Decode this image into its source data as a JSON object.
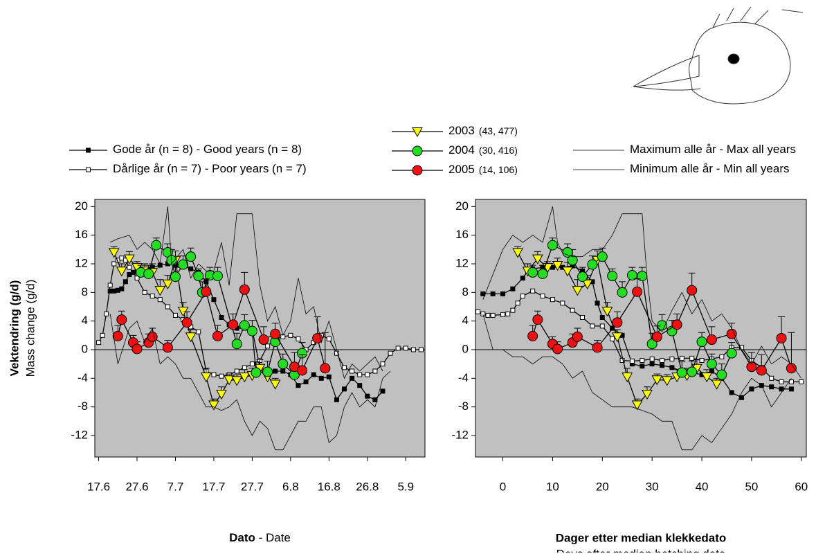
{
  "chart_data": [
    {
      "type": "line",
      "xlabel": {
        "no": "Dato",
        "en": " - Date"
      },
      "ylabel": {
        "no": "Vektendring (g/d)",
        "en": "Mass change (g/d)"
      },
      "xlim": [
        -1,
        85
      ],
      "ylim": [
        -15,
        21
      ],
      "yticks": [
        -12,
        -8,
        -4,
        0,
        4,
        8,
        12,
        16,
        20
      ],
      "xticks": [
        {
          "value": 0,
          "label": "17.6"
        },
        {
          "value": 10,
          "label": "27.6"
        },
        {
          "value": 20,
          "label": "7.7"
        },
        {
          "value": 30,
          "label": "17.7"
        },
        {
          "value": 40,
          "label": "27.7"
        },
        {
          "value": 50,
          "label": "6.8"
        },
        {
          "value": 60,
          "label": "16.8"
        },
        {
          "value": 70,
          "label": "26.8"
        },
        {
          "value": 80,
          "label": "5.9"
        }
      ],
      "series": [
        {
          "name": "Gode år (n = 8) - Good years (n = 8)",
          "color": "#000000",
          "marker": "square",
          "x": [
            3,
            4,
            5,
            6,
            7,
            8,
            9,
            10,
            12,
            14,
            16,
            18,
            20,
            22,
            24,
            26,
            28,
            30,
            32,
            34,
            36,
            38,
            40,
            42,
            44,
            46,
            48,
            50,
            52,
            54,
            56,
            58,
            60,
            62,
            64,
            66,
            68,
            70,
            72,
            74
          ],
          "values": [
            8.2,
            8.2,
            8.3,
            8.5,
            9.5,
            10.5,
            10.8,
            11,
            11.2,
            11.5,
            11.8,
            12,
            11.9,
            11.7,
            11.3,
            10.8,
            9.5,
            7,
            4.5,
            3.5,
            3,
            3,
            2.8,
            -2.5,
            -3,
            -3,
            -3,
            -3.5,
            -5,
            -4.5,
            -3.5,
            -4,
            -3.8,
            -7,
            -5.5,
            -4,
            -5,
            -6.5,
            -7,
            -5.8
          ]
        },
        {
          "name": "Dårlige år (n = 7) - Poor years (n = 7)",
          "color": "#ffffff",
          "marker": "square",
          "x": [
            0,
            1,
            2,
            3,
            4,
            5,
            6,
            7,
            8,
            10,
            12,
            14,
            16,
            18,
            20,
            22,
            24,
            26,
            28,
            30,
            32,
            34,
            36,
            38,
            40,
            42,
            44,
            46,
            48,
            50,
            52,
            54,
            56,
            58,
            60,
            62,
            64,
            66,
            68,
            70,
            72,
            74,
            76,
            78,
            80,
            82,
            84
          ],
          "values": [
            1,
            2,
            5,
            9,
            12,
            12.5,
            12.8,
            12.5,
            11.5,
            10,
            8,
            7.5,
            7,
            6,
            4.8,
            4.2,
            3.2,
            2.5,
            -3,
            -3.5,
            -3.7,
            -3.5,
            -3,
            -2.5,
            -2,
            -1.5,
            0.5,
            1.5,
            1.8,
            2,
            1.5,
            0,
            1,
            2,
            1.5,
            -0.5,
            -2.5,
            -3,
            -3.5,
            -3.5,
            -3,
            -2,
            -0.5,
            0.2,
            0.2,
            0,
            0
          ]
        },
        {
          "name": "2003",
          "sample": "(43, 477)",
          "color": "#ffff00",
          "marker": "triangle",
          "x": [
            4,
            6,
            8,
            10,
            12,
            14,
            16,
            18,
            20,
            22,
            24,
            28,
            30,
            32,
            34,
            36,
            38,
            40,
            42,
            44,
            46
          ],
          "values": [
            13.6,
            11,
            12.7,
            11.5,
            11,
            10.8,
            8.3,
            9.2,
            12.5,
            5.4,
            1.8,
            -3.8,
            -7.7,
            -6.2,
            -4.2,
            -4.3,
            -3.8,
            -3.6,
            -2.6,
            -3.8,
            -4.8
          ],
          "errors": [
            0.8,
            1,
            1,
            0.8,
            1,
            1.2,
            1.5,
            1.2,
            1.3,
            1.2,
            1,
            1.2,
            0.8,
            1,
            0.8,
            0.8,
            1,
            1,
            1.2,
            1,
            0.8
          ]
        },
        {
          "name": "2004",
          "sample": "(30, 416)",
          "color": "#22dd22",
          "marker": "circle",
          "x": [
            11,
            13,
            15,
            18,
            19,
            20,
            22,
            24,
            26,
            27,
            29,
            31,
            36,
            38,
            40,
            41,
            44,
            46,
            48,
            51,
            53
          ],
          "values": [
            10.8,
            10.6,
            14.6,
            13.6,
            12.5,
            10.2,
            11.9,
            13,
            10.3,
            8,
            10.4,
            10.3,
            0.8,
            3.4,
            2.6,
            -3.2,
            -3.1,
            1.1,
            -2,
            -3.5,
            -0.5
          ],
          "errors": [
            1,
            1.2,
            1,
            1.2,
            1.5,
            1.3,
            1.2,
            1.2,
            1,
            1.5,
            1.1,
            1.2,
            1.5,
            1.5,
            1.5,
            1.5,
            1.5,
            1.3,
            1.4,
            1.5,
            1.5
          ]
        },
        {
          "name": "2005",
          "sample": "(14, 106)",
          "color": "#ee1111",
          "marker": "circle",
          "x": [
            5,
            6,
            9,
            10,
            13,
            14,
            18,
            23,
            28,
            31,
            35,
            38,
            43,
            46,
            51,
            53,
            57,
            59
          ],
          "values": [
            1.9,
            4.2,
            1,
            0.1,
            1,
            1.8,
            0.3,
            3.8,
            8.1,
            1.9,
            3.5,
            8.4,
            1.4,
            2.2,
            -2.4,
            -2.9,
            1.6,
            -2.6
          ],
          "errors": [
            1.5,
            1.2,
            1,
            1,
            1.2,
            1.2,
            1,
            1.5,
            1.8,
            1.5,
            1.5,
            2.4,
            1.8,
            1.5,
            2,
            2.2,
            3,
            5
          ]
        },
        {
          "name": "Maximum alle år - Max all years",
          "color": "#000000",
          "marker": "none",
          "x": [
            3,
            5,
            8,
            10,
            12,
            14,
            16,
            18,
            19,
            22,
            24,
            26,
            28,
            30,
            32,
            34,
            36,
            40,
            42,
            44,
            46,
            48,
            50,
            52,
            54,
            56,
            58,
            60,
            62,
            64,
            66,
            68,
            70,
            72,
            74
          ],
          "values": [
            15,
            15.5,
            16,
            14,
            15,
            14,
            12,
            20,
            12,
            14,
            10,
            12,
            11,
            11,
            15,
            9,
            19,
            19,
            9,
            4,
            6,
            2,
            4,
            10,
            5,
            6,
            1,
            4,
            0,
            -4,
            -2,
            -3,
            -2,
            -1,
            -3
          ]
        },
        {
          "name": "Minimum alle år - Min all years",
          "color": "#000000",
          "marker": "none",
          "x": [
            3,
            5,
            8,
            10,
            12,
            14,
            16,
            18,
            20,
            22,
            24,
            26,
            28,
            30,
            32,
            34,
            36,
            38,
            40,
            42,
            44,
            46,
            48,
            50,
            52,
            54,
            56,
            58,
            60,
            62,
            64,
            66,
            68,
            70,
            72,
            74,
            76
          ],
          "values": [
            5,
            -2,
            3,
            4,
            1,
            3,
            -2,
            -1,
            -2,
            -4,
            -4,
            -6,
            -8,
            -8,
            -8.5,
            -8,
            -7,
            -10,
            -12,
            -10,
            -11,
            -14,
            -14,
            -12,
            -10,
            -10,
            -8,
            -8,
            -13,
            -12,
            -8,
            -6,
            -8,
            -7,
            -8,
            -4,
            -3
          ]
        }
      ]
    },
    {
      "type": "line",
      "xlabel": {
        "no": "Dager etter median klekkedato",
        "en": "Days after median hatching date"
      },
      "xlim": [
        -5.5,
        61
      ],
      "ylim": [
        -15,
        21
      ],
      "yticks": [
        -12,
        -8,
        -4,
        0,
        4,
        8,
        12,
        16,
        20
      ],
      "xticks": [
        0,
        10,
        20,
        30,
        40,
        50,
        60
      ],
      "series": [
        {
          "color": "#000000",
          "marker": "square",
          "x": [
            -4,
            -2,
            0,
            2,
            4,
            5,
            6,
            8,
            10,
            12,
            14,
            16,
            18,
            19,
            20,
            22,
            24,
            26,
            28,
            30,
            32,
            34,
            36,
            38,
            40,
            42,
            44,
            46,
            48,
            50,
            52,
            54,
            56,
            58
          ],
          "values": [
            7.8,
            7.8,
            7.8,
            8.5,
            10,
            11,
            11.3,
            11.5,
            11.5,
            11.5,
            11.7,
            11,
            9.5,
            6.5,
            4.5,
            3,
            2,
            -2,
            -2.3,
            -2,
            -2.2,
            -2.5,
            -3,
            -3.2,
            -3.5,
            -3,
            -4,
            -6,
            -6.7,
            -5.5,
            -5,
            -5.2,
            -5.5,
            -5.5
          ]
        },
        {
          "color": "#ffffff",
          "marker": "square",
          "x": [
            -5,
            -4,
            -3,
            -2,
            0,
            1,
            2,
            3,
            4,
            6,
            8,
            10,
            12,
            14,
            16,
            18,
            20,
            22,
            24,
            26,
            28,
            30,
            32,
            34,
            36,
            38,
            40,
            42,
            44,
            46,
            48,
            50,
            52,
            54,
            56,
            58,
            60
          ],
          "values": [
            5.3,
            5,
            4.8,
            4.8,
            4.9,
            5,
            5.5,
            6.5,
            7.5,
            8.2,
            7.5,
            7,
            6.5,
            5.5,
            4.5,
            3.3,
            3.3,
            1.5,
            -1.5,
            -1.6,
            -1.5,
            -1.3,
            -1.5,
            -1.3,
            -1.2,
            -1.2,
            -1.5,
            -1.3,
            -1,
            0.3,
            0.3,
            -1.5,
            -2.5,
            -4,
            -4.5,
            -4.5,
            -4.5
          ]
        },
        {
          "color": "#ffff00",
          "marker": "triangle",
          "x": [
            3,
            5,
            7,
            9,
            11,
            13,
            15,
            17,
            19,
            21,
            23,
            25,
            27,
            29,
            31,
            33,
            35,
            37,
            39,
            41,
            43
          ],
          "values": [
            13.6,
            11,
            12.7,
            11.5,
            11.8,
            11,
            8.3,
            9.2,
            12.5,
            5.4,
            1.8,
            -3.8,
            -7.7,
            -6.2,
            -4.2,
            -4.3,
            -3.8,
            -3.6,
            -2.6,
            -3.8,
            -4.8
          ],
          "errors": [
            0.8,
            1,
            1,
            0.8,
            1,
            1.2,
            1.5,
            1.2,
            1.3,
            1.2,
            1,
            1.2,
            0.8,
            1,
            0.8,
            0.8,
            1,
            1,
            1.2,
            1,
            0.8
          ]
        },
        {
          "color": "#22dd22",
          "marker": "circle",
          "x": [
            6,
            8,
            10,
            13,
            14,
            16,
            18,
            20,
            22,
            24,
            26,
            28,
            30,
            32,
            34,
            36,
            38,
            40,
            42,
            44,
            46
          ],
          "values": [
            10.8,
            10.6,
            14.6,
            13.6,
            12.5,
            10.2,
            11.9,
            13,
            10.3,
            8,
            10.4,
            10.3,
            0.8,
            3.4,
            2.6,
            -3.2,
            -3.1,
            1.1,
            -2,
            -3.5,
            -0.5
          ],
          "errors": [
            1,
            1.2,
            1,
            1.2,
            1.5,
            1.3,
            1.2,
            1.2,
            1,
            1.5,
            1.1,
            1.2,
            1.5,
            1.5,
            1.5,
            1.5,
            1.5,
            1.3,
            1.4,
            1.5,
            1.5
          ]
        },
        {
          "color": "#ee1111",
          "marker": "circle",
          "x": [
            6,
            7,
            10,
            11,
            14,
            15,
            19,
            23,
            27,
            31,
            35,
            38,
            42,
            46,
            50,
            52,
            56,
            58
          ],
          "values": [
            1.9,
            4.2,
            0.8,
            0.1,
            1,
            1.8,
            0.3,
            3.8,
            8.1,
            1.8,
            3.5,
            8.3,
            1.4,
            2.2,
            -2.4,
            -2.9,
            1.6,
            -2.6
          ],
          "errors": [
            1.5,
            1.2,
            1,
            1,
            1.2,
            1.2,
            1,
            1.5,
            1.8,
            1.5,
            1.5,
            2.4,
            1.8,
            1.5,
            2,
            2.2,
            3,
            5
          ]
        },
        {
          "color": "#000000",
          "marker": "none",
          "x": [
            -4,
            0,
            2,
            4,
            6,
            8,
            10,
            11,
            12,
            14,
            16,
            18,
            20,
            22,
            24,
            28,
            29,
            30,
            32,
            34,
            36,
            38,
            40,
            42,
            44,
            46,
            48,
            50,
            52,
            54,
            56,
            58,
            60
          ],
          "values": [
            7,
            14,
            16,
            15,
            16,
            15,
            20,
            15,
            13.5,
            13,
            13,
            14,
            14,
            16,
            19,
            19,
            10,
            4,
            2.5,
            5.5,
            8,
            5,
            7,
            4,
            5,
            3,
            0,
            -2,
            0.5,
            -2,
            -1,
            -2,
            -4
          ]
        },
        {
          "color": "#000000",
          "marker": "none",
          "x": [
            -4,
            -2,
            0,
            2,
            4,
            6,
            8,
            10,
            12,
            14,
            16,
            18,
            20,
            22,
            24,
            26,
            28,
            30,
            32,
            34,
            36,
            38,
            40,
            42,
            44,
            46,
            48,
            50,
            52,
            54,
            56,
            58
          ],
          "values": [
            5,
            0,
            0,
            -1,
            -1,
            -2,
            -1,
            -1,
            -2,
            -4,
            -3,
            -6,
            -7,
            -8,
            -8,
            -8,
            -8.5,
            -9,
            -10,
            -10,
            -14,
            -14,
            -12,
            -13,
            -11,
            -9,
            -6,
            -4,
            -5,
            -8,
            -6,
            -4
          ]
        }
      ]
    }
  ]
}
